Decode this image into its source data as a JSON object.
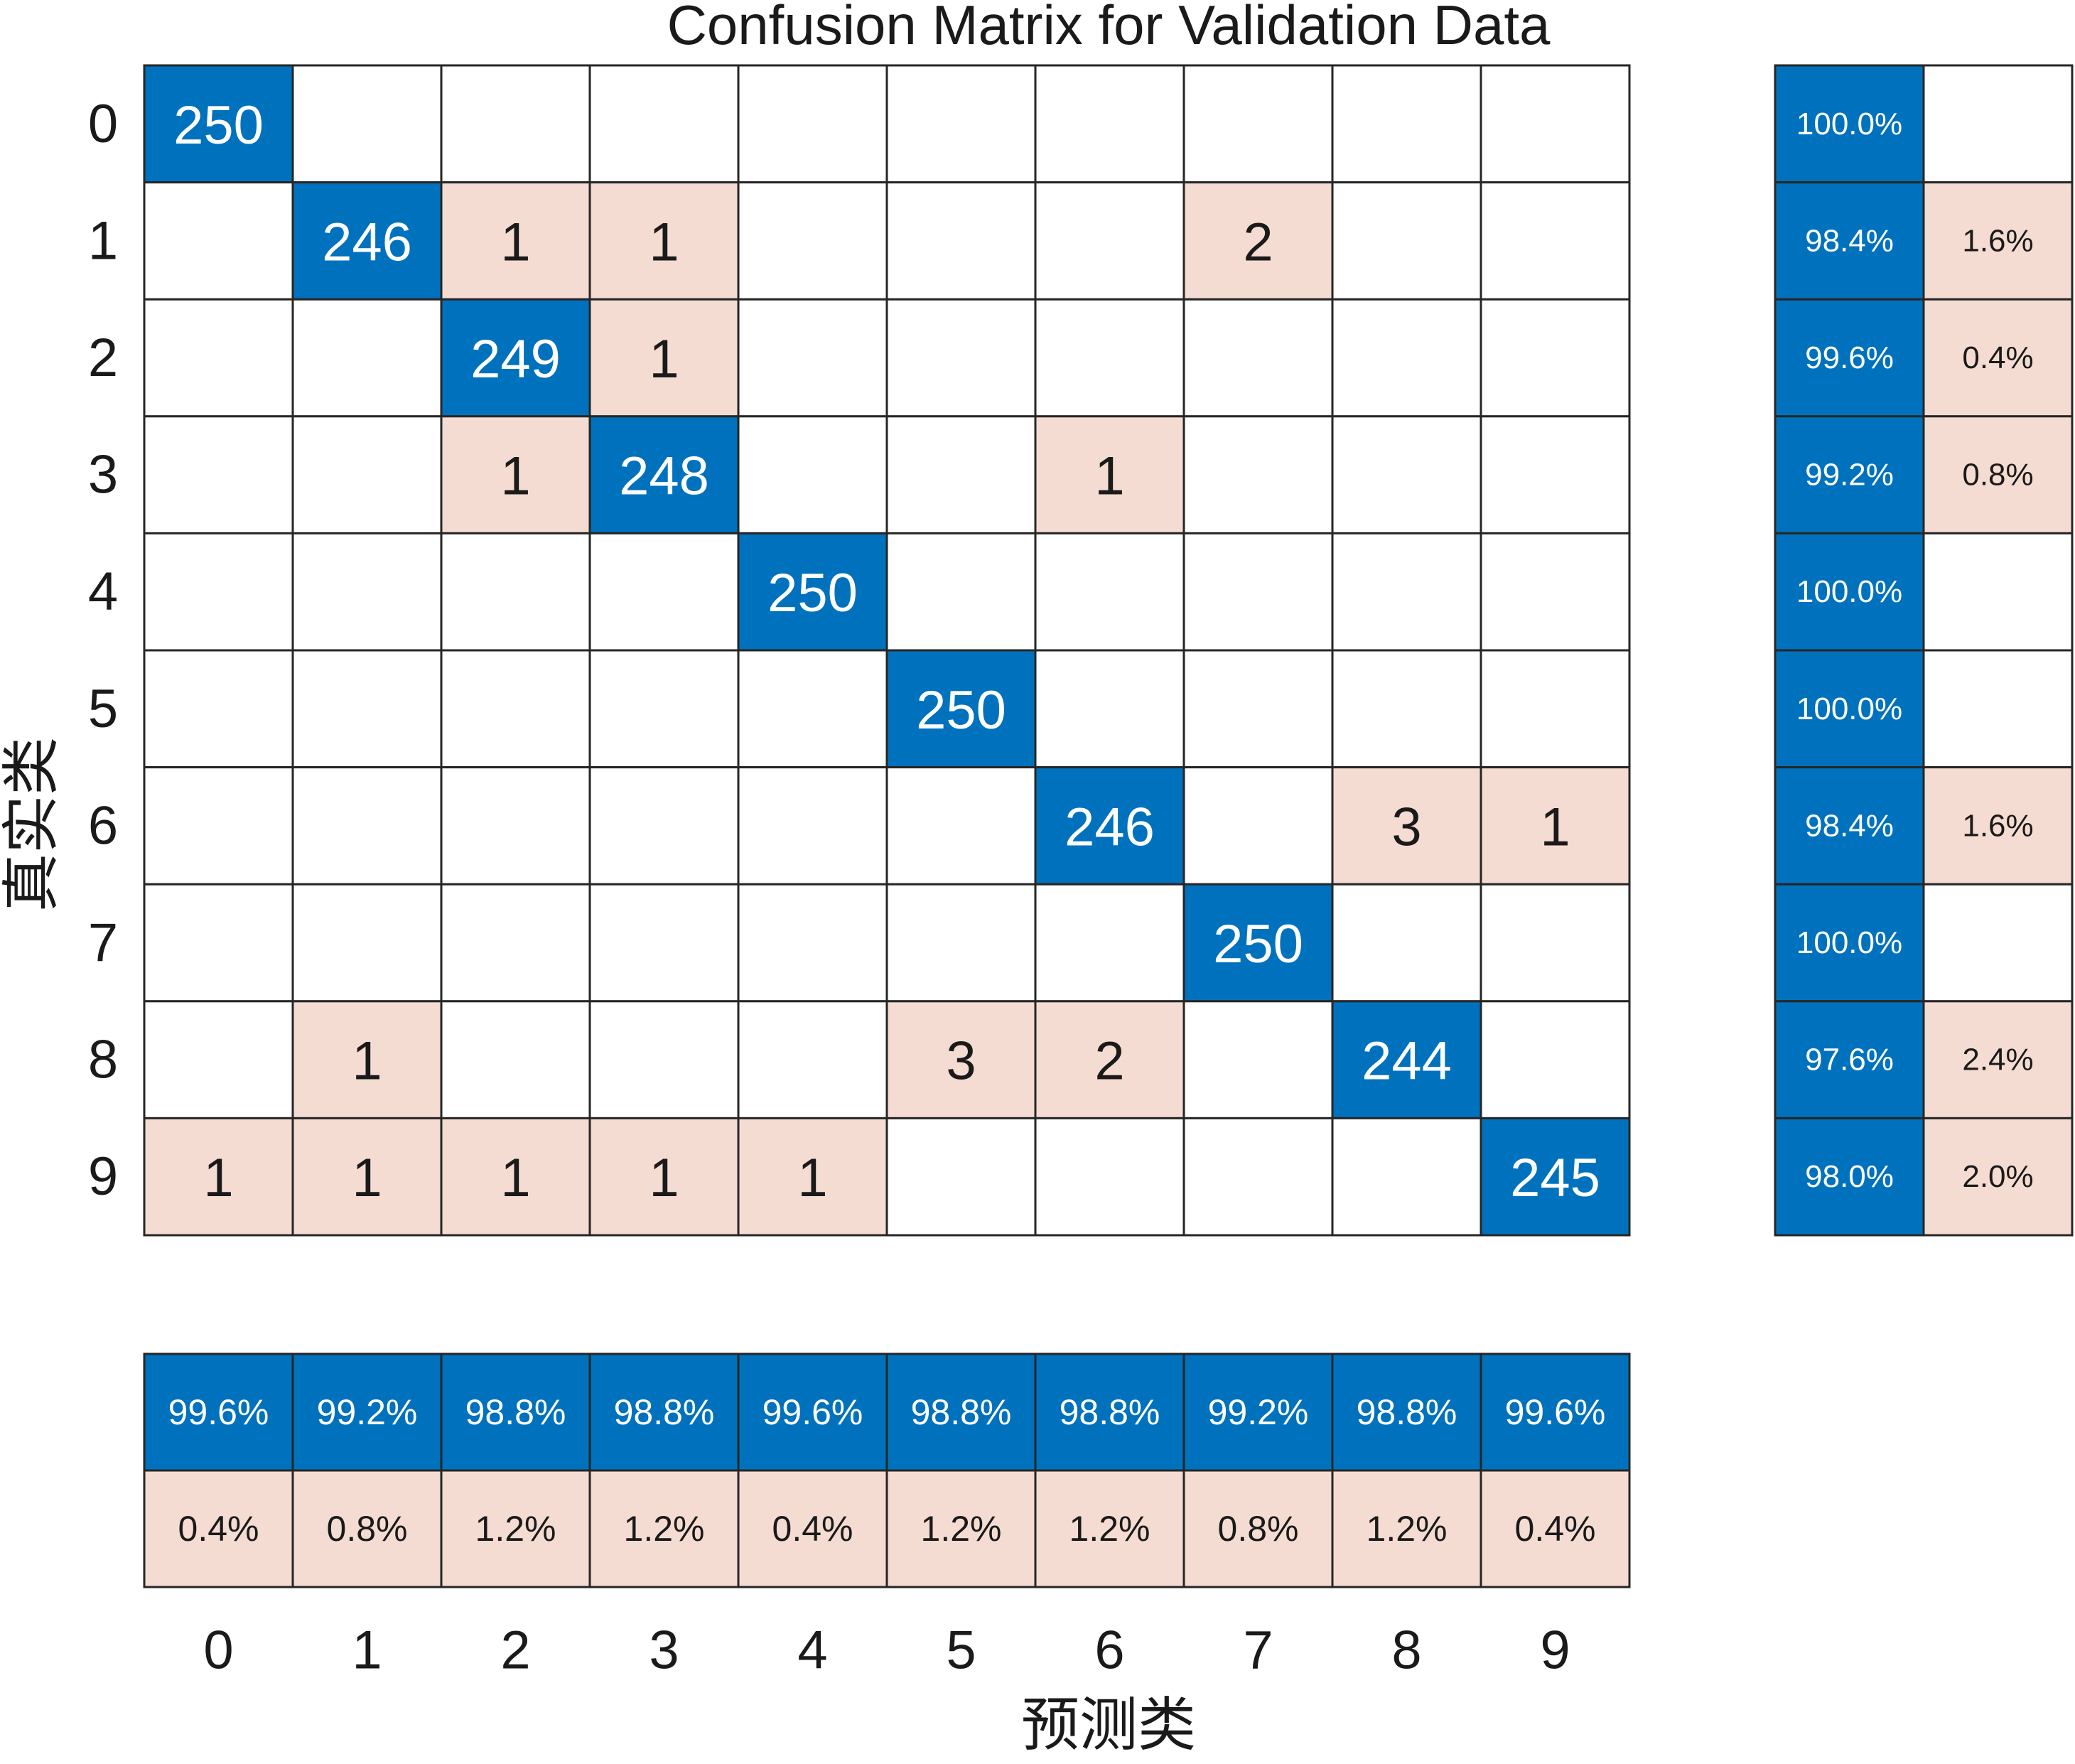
{
  "chart_data": {
    "type": "heatmap",
    "title": "Confusion Matrix for Validation Data",
    "xlabel": "预测类",
    "ylabel": "真实类",
    "classes": [
      "0",
      "1",
      "2",
      "3",
      "4",
      "5",
      "6",
      "7",
      "8",
      "9"
    ],
    "matrix": [
      [
        250,
        0,
        0,
        0,
        0,
        0,
        0,
        0,
        0,
        0
      ],
      [
        0,
        246,
        1,
        1,
        0,
        0,
        0,
        2,
        0,
        0
      ],
      [
        0,
        0,
        249,
        1,
        0,
        0,
        0,
        0,
        0,
        0
      ],
      [
        0,
        0,
        1,
        248,
        0,
        0,
        1,
        0,
        0,
        0
      ],
      [
        0,
        0,
        0,
        0,
        250,
        0,
        0,
        0,
        0,
        0
      ],
      [
        0,
        0,
        0,
        0,
        0,
        250,
        0,
        0,
        0,
        0
      ],
      [
        0,
        0,
        0,
        0,
        0,
        0,
        246,
        0,
        3,
        1
      ],
      [
        0,
        0,
        0,
        0,
        0,
        0,
        0,
        250,
        0,
        0
      ],
      [
        0,
        1,
        0,
        0,
        0,
        3,
        2,
        0,
        244,
        0
      ],
      [
        1,
        1,
        1,
        1,
        1,
        0,
        0,
        0,
        0,
        245
      ]
    ],
    "row_summary": {
      "correct": [
        "100.0%",
        "98.4%",
        "99.6%",
        "99.2%",
        "100.0%",
        "100.0%",
        "98.4%",
        "100.0%",
        "97.6%",
        "98.0%"
      ],
      "incorrect": [
        "",
        "1.6%",
        "0.4%",
        "0.8%",
        "",
        "",
        "1.6%",
        "",
        "2.4%",
        "2.0%"
      ]
    },
    "column_summary": {
      "correct": [
        "99.6%",
        "99.2%",
        "98.8%",
        "98.8%",
        "99.6%",
        "98.8%",
        "98.8%",
        "99.2%",
        "98.8%",
        "99.6%"
      ],
      "incorrect": [
        "0.4%",
        "0.8%",
        "1.2%",
        "1.2%",
        "0.4%",
        "1.2%",
        "1.2%",
        "0.8%",
        "1.2%",
        "0.4%"
      ]
    },
    "colors": {
      "correct": "#0072BD",
      "incorrect": "#F5DCD2",
      "empty": "#FFFFFF",
      "grid": "#262626",
      "text_on_correct": "#FFFFFF",
      "text_on_incorrect": "#1A1A1A"
    }
  }
}
